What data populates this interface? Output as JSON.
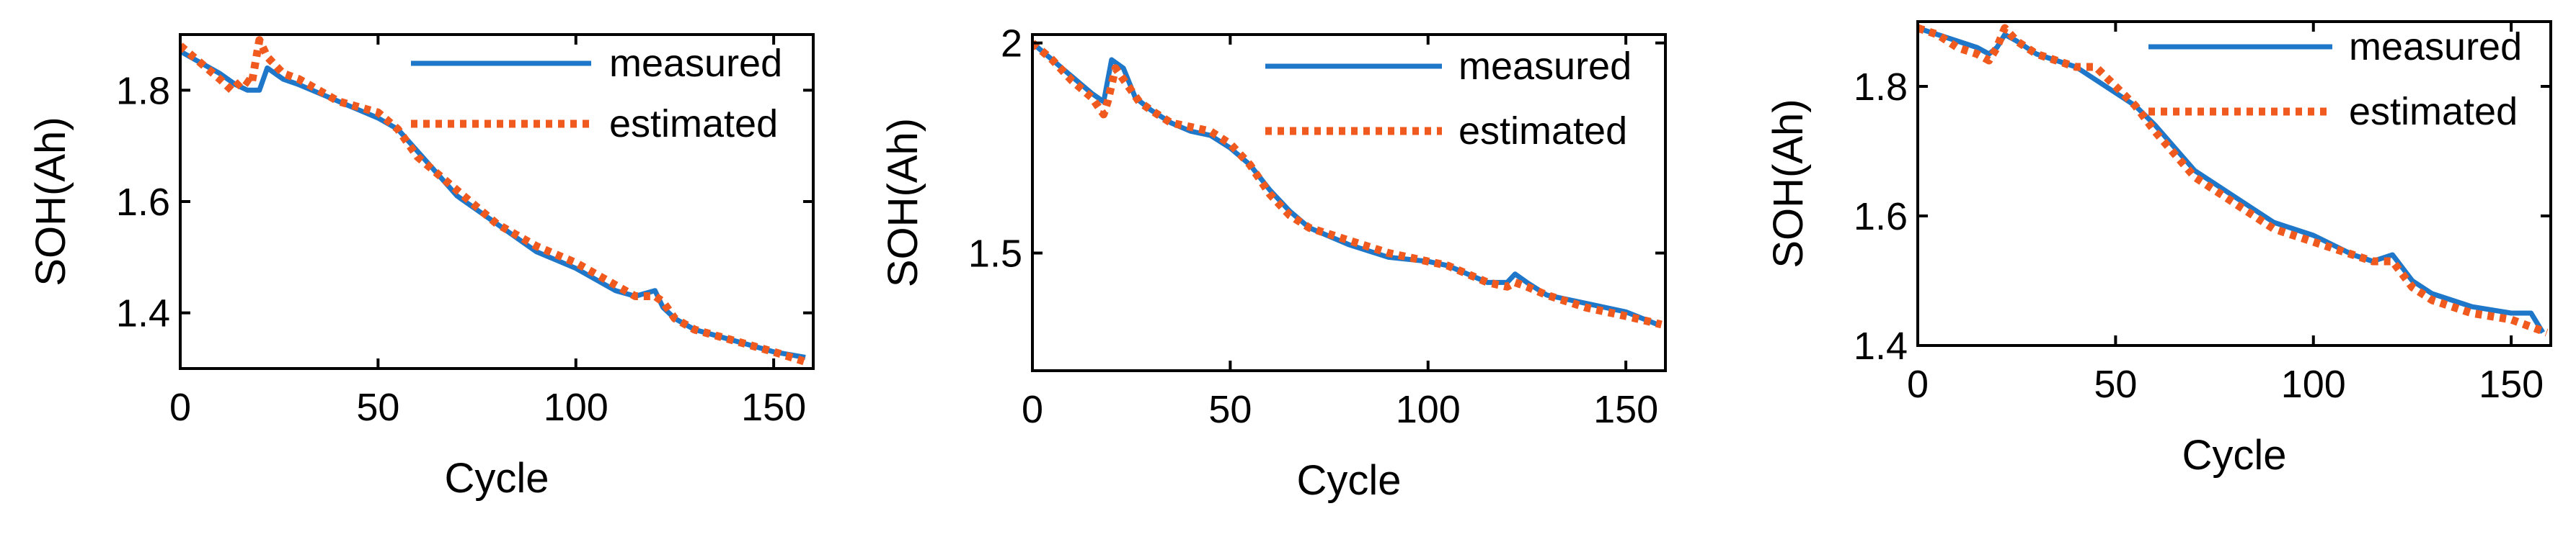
{
  "chart_data": [
    {
      "type": "line",
      "title": "",
      "xlabel": "Cycle",
      "ylabel": "SOH(Ah)",
      "xlim": [
        0,
        160
      ],
      "ylim": [
        1.3,
        1.9
      ],
      "xticks": [
        0,
        50,
        100,
        150
      ],
      "xtick_labels": [
        "0",
        "50",
        "100",
        "150"
      ],
      "yticks": [
        1.4,
        1.6,
        1.8
      ],
      "ytick_labels": [
        "1.4",
        "1.6",
        "1.8"
      ],
      "legend_position": "top-right",
      "series": [
        {
          "name": "measured",
          "style": "solid",
          "x": [
            0,
            5,
            10,
            14,
            17,
            20,
            22,
            26,
            30,
            40,
            50,
            55,
            60,
            70,
            80,
            90,
            100,
            110,
            115,
            120,
            122,
            125,
            130,
            140,
            150,
            158
          ],
          "y": [
            1.87,
            1.85,
            1.83,
            1.81,
            1.8,
            1.8,
            1.84,
            1.82,
            1.81,
            1.78,
            1.75,
            1.73,
            1.69,
            1.61,
            1.56,
            1.51,
            1.48,
            1.44,
            1.43,
            1.44,
            1.41,
            1.39,
            1.37,
            1.35,
            1.33,
            1.32
          ]
        },
        {
          "name": "estimated",
          "style": "dotted",
          "x": [
            0,
            5,
            10,
            13,
            16,
            18,
            20,
            22,
            26,
            30,
            40,
            50,
            55,
            60,
            70,
            80,
            90,
            100,
            110,
            115,
            120,
            122,
            125,
            130,
            140,
            150,
            159
          ],
          "y": [
            1.88,
            1.85,
            1.82,
            1.8,
            1.82,
            1.81,
            1.89,
            1.86,
            1.83,
            1.82,
            1.78,
            1.76,
            1.73,
            1.68,
            1.62,
            1.56,
            1.52,
            1.49,
            1.45,
            1.43,
            1.43,
            1.42,
            1.39,
            1.37,
            1.35,
            1.33,
            1.31
          ]
        }
      ]
    },
    {
      "type": "line",
      "title": "",
      "xlabel": "Cycle",
      "ylabel": "SOH(Ah)",
      "xlim": [
        0,
        160
      ],
      "ylim": [
        1.22,
        2.02
      ],
      "xticks": [
        0,
        50,
        100,
        150
      ],
      "xtick_labels": [
        "0",
        "50",
        "100",
        "150"
      ],
      "yticks": [
        1.5,
        2.0
      ],
      "ytick_labels": [
        "1.5",
        "2"
      ],
      "legend_position": "top-right",
      "series": [
        {
          "name": "measured",
          "style": "solid",
          "x": [
            0,
            5,
            10,
            15,
            18,
            20,
            23,
            26,
            30,
            35,
            40,
            45,
            50,
            55,
            60,
            65,
            70,
            80,
            90,
            100,
            105,
            110,
            115,
            120,
            122,
            125,
            130,
            140,
            150,
            158
          ],
          "y": [
            2.0,
            1.96,
            1.92,
            1.88,
            1.86,
            1.96,
            1.94,
            1.87,
            1.84,
            1.81,
            1.79,
            1.78,
            1.75,
            1.71,
            1.65,
            1.6,
            1.56,
            1.52,
            1.49,
            1.48,
            1.47,
            1.45,
            1.43,
            1.43,
            1.45,
            1.43,
            1.4,
            1.38,
            1.36,
            1.33
          ]
        },
        {
          "name": "estimated",
          "style": "dotted",
          "x": [
            0,
            5,
            10,
            15,
            18,
            19,
            21,
            24,
            27,
            30,
            35,
            40,
            45,
            50,
            55,
            60,
            65,
            70,
            80,
            90,
            100,
            105,
            110,
            115,
            120,
            122,
            125,
            130,
            140,
            150,
            159
          ],
          "y": [
            2.0,
            1.96,
            1.91,
            1.87,
            1.83,
            1.86,
            1.94,
            1.9,
            1.86,
            1.84,
            1.81,
            1.8,
            1.79,
            1.76,
            1.71,
            1.64,
            1.59,
            1.56,
            1.53,
            1.5,
            1.48,
            1.47,
            1.45,
            1.43,
            1.42,
            1.43,
            1.42,
            1.4,
            1.37,
            1.35,
            1.33
          ]
        }
      ]
    },
    {
      "type": "line",
      "title": "",
      "xlabel": "Cycle",
      "ylabel": "SOH(Ah)",
      "xlim": [
        0,
        160
      ],
      "ylim": [
        1.4,
        1.9
      ],
      "xticks": [
        0,
        50,
        100,
        150
      ],
      "xtick_labels": [
        "0",
        "50",
        "100",
        "150"
      ],
      "yticks": [
        1.4,
        1.6,
        1.8
      ],
      "ytick_labels": [
        "1.4",
        "1.6",
        "1.8"
      ],
      "legend_position": "top-right",
      "series": [
        {
          "name": "measured",
          "style": "solid",
          "x": [
            0,
            5,
            10,
            15,
            18,
            20,
            22,
            25,
            30,
            40,
            50,
            55,
            60,
            70,
            80,
            90,
            100,
            110,
            115,
            120,
            125,
            130,
            140,
            150,
            155,
            158
          ],
          "y": [
            1.89,
            1.88,
            1.87,
            1.86,
            1.85,
            1.86,
            1.88,
            1.87,
            1.85,
            1.83,
            1.79,
            1.77,
            1.74,
            1.67,
            1.63,
            1.59,
            1.57,
            1.54,
            1.53,
            1.54,
            1.5,
            1.48,
            1.46,
            1.45,
            1.45,
            1.42
          ]
        },
        {
          "name": "estimated",
          "style": "dotted",
          "x": [
            0,
            5,
            10,
            15,
            18,
            20,
            22,
            25,
            30,
            40,
            45,
            50,
            55,
            60,
            70,
            80,
            90,
            100,
            110,
            115,
            120,
            125,
            130,
            140,
            150,
            159
          ],
          "y": [
            1.89,
            1.88,
            1.86,
            1.85,
            1.84,
            1.86,
            1.89,
            1.87,
            1.85,
            1.83,
            1.83,
            1.8,
            1.77,
            1.73,
            1.66,
            1.62,
            1.58,
            1.56,
            1.54,
            1.53,
            1.53,
            1.49,
            1.47,
            1.45,
            1.44,
            1.42
          ]
        }
      ]
    }
  ]
}
